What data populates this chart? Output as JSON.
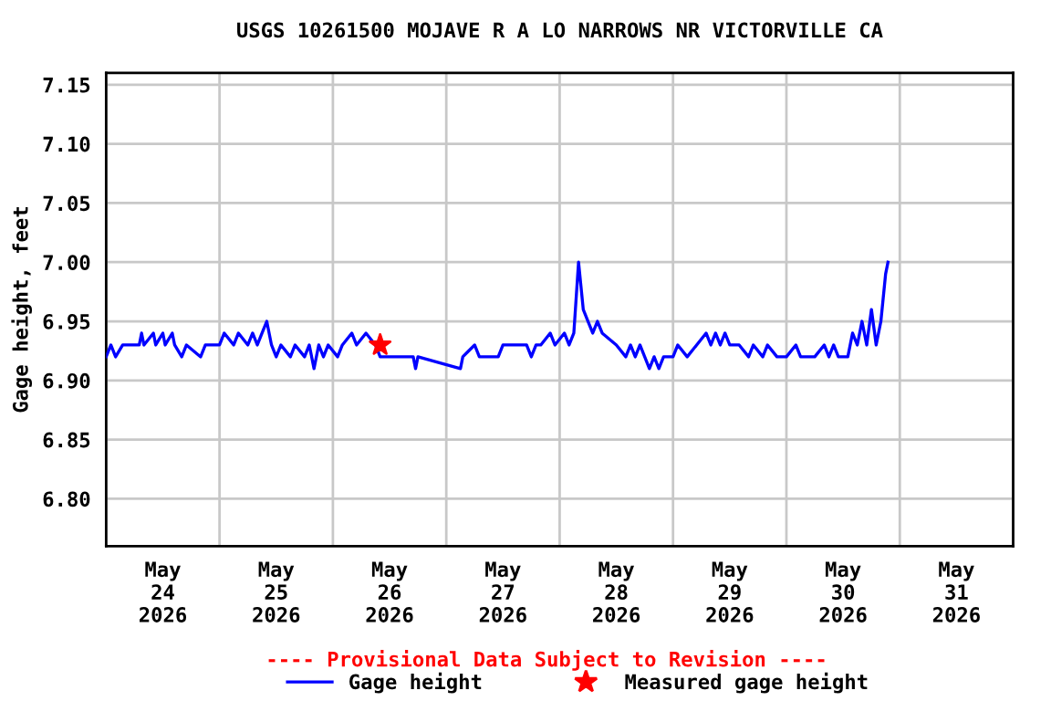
{
  "chart_data": {
    "type": "line",
    "title": "USGS 10261500 MOJAVE R A LO NARROWS NR VICTORVILLE CA",
    "ylabel": "Gage height, feet",
    "annotations": [
      "---- Provisional Data Subject to Revision ----"
    ],
    "xlim": [
      "2026-05-24T00:00",
      "2026-06-01T00:00"
    ],
    "xticks": [
      {
        "value": "2026-05-24T00:00",
        "label": null
      },
      {
        "value": "2026-05-24T12:00",
        "label": "May\n24\n2026"
      },
      {
        "value": "2026-05-25T00:00",
        "label": null
      },
      {
        "value": "2026-05-25T12:00",
        "label": "May\n25\n2026"
      },
      {
        "value": "2026-05-26T00:00",
        "label": null
      },
      {
        "value": "2026-05-26T12:00",
        "label": "May\n26\n2026"
      },
      {
        "value": "2026-05-27T00:00",
        "label": null
      },
      {
        "value": "2026-05-27T12:00",
        "label": "May\n27\n2026"
      },
      {
        "value": "2026-05-28T00:00",
        "label": null
      },
      {
        "value": "2026-05-28T12:00",
        "label": "May\n28\n2026"
      },
      {
        "value": "2026-05-29T00:00",
        "label": null
      },
      {
        "value": "2026-05-29T12:00",
        "label": "May\n29\n2026"
      },
      {
        "value": "2026-05-30T00:00",
        "label": null
      },
      {
        "value": "2026-05-30T12:00",
        "label": "May\n30\n2026"
      },
      {
        "value": "2026-05-31T00:00",
        "label": null
      },
      {
        "value": "2026-05-31T12:00",
        "label": "May\n31\n2026"
      },
      {
        "value": "2026-06-01T00:00",
        "label": null
      }
    ],
    "ylim": [
      6.76,
      7.16
    ],
    "yticks": [
      {
        "value": 6.8,
        "label": "6.80"
      },
      {
        "value": 6.85,
        "label": "6.85"
      },
      {
        "value": 6.9,
        "label": "6.90"
      },
      {
        "value": 6.95,
        "label": "6.95"
      },
      {
        "value": 7.0,
        "label": "7.00"
      },
      {
        "value": 7.05,
        "label": "7.05"
      },
      {
        "value": 7.1,
        "label": "7.10"
      },
      {
        "value": 7.15,
        "label": "7.15"
      }
    ],
    "grid": true,
    "legend": "bottom",
    "series": [
      {
        "name": "Gage height",
        "color": "#0000ff",
        "marker": "none",
        "x": [
          "2026-05-24T00:00",
          "2026-05-24T01:00",
          "2026-05-24T02:00",
          "2026-05-24T03:30",
          "2026-05-24T07:00",
          "2026-05-24T07:30",
          "2026-05-24T08:00",
          "2026-05-24T10:00",
          "2026-05-24T10:30",
          "2026-05-24T12:00",
          "2026-05-24T12:30",
          "2026-05-24T14:00",
          "2026-05-24T14:30",
          "2026-05-24T16:00",
          "2026-05-24T17:00",
          "2026-05-24T20:00",
          "2026-05-24T21:00",
          "2026-05-25T00:00",
          "2026-05-25T01:00",
          "2026-05-25T03:00",
          "2026-05-25T04:00",
          "2026-05-25T06:00",
          "2026-05-25T07:00",
          "2026-05-25T08:00",
          "2026-05-25T09:00",
          "2026-05-25T10:00",
          "2026-05-25T11:00",
          "2026-05-25T12:00",
          "2026-05-25T13:00",
          "2026-05-25T15:00",
          "2026-05-25T16:00",
          "2026-05-25T18:00",
          "2026-05-25T19:00",
          "2026-05-25T20:00",
          "2026-05-25T21:00",
          "2026-05-25T22:00",
          "2026-05-25T23:00",
          "2026-05-26T01:00",
          "2026-05-26T02:00",
          "2026-05-26T04:00",
          "2026-05-26T05:00",
          "2026-05-26T07:00",
          "2026-05-26T09:00",
          "2026-05-26T10:00",
          "2026-05-26T11:00",
          "2026-05-26T17:00",
          "2026-05-26T17:30",
          "2026-05-26T18:00",
          "2026-05-27T03:00",
          "2026-05-27T03:30",
          "2026-05-27T06:00",
          "2026-05-27T07:00",
          "2026-05-27T11:00",
          "2026-05-27T12:00",
          "2026-05-27T17:00",
          "2026-05-27T18:00",
          "2026-05-27T19:00",
          "2026-05-27T20:00",
          "2026-05-27T22:00",
          "2026-05-27T23:00",
          "2026-05-28T01:00",
          "2026-05-28T02:00",
          "2026-05-28T03:00",
          "2026-05-28T04:00",
          "2026-05-28T04:30",
          "2026-05-28T05:00",
          "2026-05-28T06:00",
          "2026-05-28T07:00",
          "2026-05-28T08:00",
          "2026-05-28T09:00",
          "2026-05-28T12:00",
          "2026-05-28T14:00",
          "2026-05-28T15:00",
          "2026-05-28T16:00",
          "2026-05-28T17:00",
          "2026-05-28T18:00",
          "2026-05-28T19:00",
          "2026-05-28T20:00",
          "2026-05-28T21:00",
          "2026-05-28T22:00",
          "2026-05-29T00:00",
          "2026-05-29T01:00",
          "2026-05-29T03:00",
          "2026-05-29T05:00",
          "2026-05-29T07:00",
          "2026-05-29T08:00",
          "2026-05-29T09:00",
          "2026-05-29T10:00",
          "2026-05-29T11:00",
          "2026-05-29T12:00",
          "2026-05-29T14:00",
          "2026-05-29T16:00",
          "2026-05-29T17:00",
          "2026-05-29T19:00",
          "2026-05-29T20:00",
          "2026-05-29T22:00",
          "2026-05-30T00:00",
          "2026-05-30T02:00",
          "2026-05-30T03:00",
          "2026-05-30T06:00",
          "2026-05-30T08:00",
          "2026-05-30T09:00",
          "2026-05-30T10:00",
          "2026-05-30T11:00",
          "2026-05-30T13:00",
          "2026-05-30T14:00",
          "2026-05-30T15:00",
          "2026-05-30T16:00",
          "2026-05-30T17:00",
          "2026-05-30T18:00",
          "2026-05-30T19:00",
          "2026-05-30T20:00",
          "2026-05-30T21:00",
          "2026-05-30T21:30"
        ],
        "values": [
          6.92,
          6.93,
          6.92,
          6.93,
          6.93,
          6.94,
          6.93,
          6.94,
          6.93,
          6.94,
          6.93,
          6.94,
          6.93,
          6.92,
          6.93,
          6.92,
          6.93,
          6.93,
          6.94,
          6.93,
          6.94,
          6.93,
          6.94,
          6.93,
          6.94,
          6.95,
          6.93,
          6.92,
          6.93,
          6.92,
          6.93,
          6.92,
          6.93,
          6.91,
          6.93,
          6.92,
          6.93,
          6.92,
          6.93,
          6.94,
          6.93,
          6.94,
          6.93,
          6.92,
          6.92,
          6.92,
          6.91,
          6.92,
          6.91,
          6.92,
          6.93,
          6.92,
          6.92,
          6.93,
          6.93,
          6.92,
          6.93,
          6.93,
          6.94,
          6.93,
          6.94,
          6.93,
          6.94,
          7.0,
          6.98,
          6.96,
          6.95,
          6.94,
          6.95,
          6.94,
          6.93,
          6.92,
          6.93,
          6.92,
          6.93,
          6.92,
          6.91,
          6.92,
          6.91,
          6.92,
          6.92,
          6.93,
          6.92,
          6.93,
          6.94,
          6.93,
          6.94,
          6.93,
          6.94,
          6.93,
          6.93,
          6.92,
          6.93,
          6.92,
          6.93,
          6.92,
          6.92,
          6.93,
          6.92,
          6.92,
          6.93,
          6.92,
          6.93,
          6.92,
          6.92,
          6.94,
          6.93,
          6.95,
          6.93,
          6.96,
          6.93,
          6.95,
          6.99,
          7.0
        ]
      },
      {
        "name": "Measured gage height",
        "type": "scatter",
        "color": "#ff0000",
        "marker": "star",
        "x": [
          "2026-05-26T10:00"
        ],
        "values": [
          6.93
        ]
      }
    ]
  }
}
